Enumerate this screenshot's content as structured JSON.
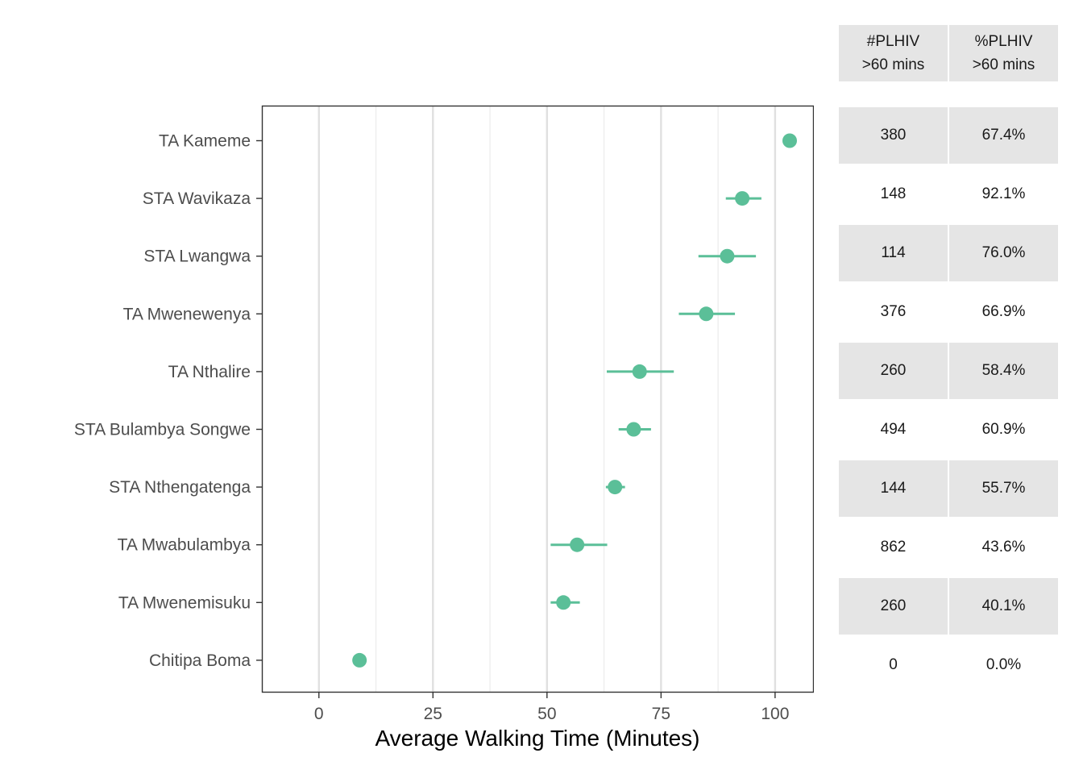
{
  "chart_data": {
    "type": "scatter",
    "xlabel": "Average Walking Time (Minutes)",
    "ylabel": "",
    "xlim": [
      -12.5,
      108.5
    ],
    "xticks": [
      0,
      25,
      50,
      75,
      100
    ],
    "grid": true,
    "point_color": "#5bbf98",
    "categories": [
      "TA Kameme",
      "STA Wavikaza",
      "STA Lwangwa",
      "TA Mwenewenya",
      "TA Nthalire",
      "STA Bulambya Songwe",
      "STA Nthengatenga",
      "TA Mwabulambya",
      "TA Mwenemisuku",
      "Chitipa Boma"
    ],
    "series": [
      {
        "values": [
          103.2,
          92.8,
          89.5,
          84.9,
          70.3,
          69.0,
          64.9,
          56.6,
          53.6,
          8.9
        ],
        "lower": [
          null,
          89.2,
          83.2,
          78.9,
          63.1,
          65.7,
          62.9,
          50.8,
          50.8,
          null
        ],
        "upper": [
          null,
          97.0,
          95.8,
          91.2,
          77.8,
          72.8,
          67.1,
          63.2,
          57.2,
          null
        ]
      }
    ],
    "table": {
      "headers": [
        {
          "line1": "#PLHIV",
          "line2": ">60 mins"
        },
        {
          "line1": "%PLHIV",
          "line2": ">60 mins"
        }
      ],
      "rows": [
        [
          "380",
          "67.4%"
        ],
        [
          "148",
          "92.1%"
        ],
        [
          "114",
          "76.0%"
        ],
        [
          "376",
          "66.9%"
        ],
        [
          "260",
          "58.4%"
        ],
        [
          "494",
          "60.9%"
        ],
        [
          "144",
          "55.7%"
        ],
        [
          "862",
          "43.6%"
        ],
        [
          "260",
          "40.1%"
        ],
        [
          "0",
          "0.0%"
        ]
      ]
    }
  }
}
